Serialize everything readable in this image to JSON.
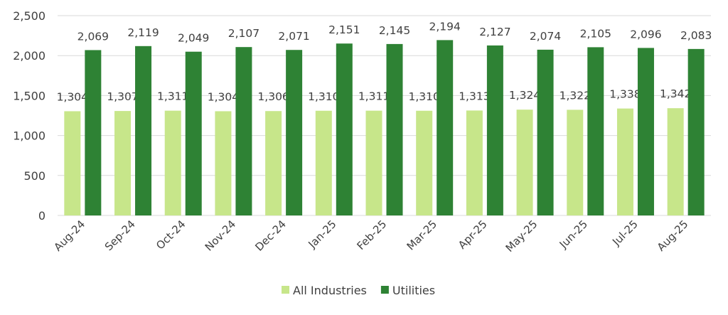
{
  "chart_data": {
    "type": "bar",
    "title": "",
    "xlabel": "",
    "ylabel": "",
    "ylim": [
      0,
      2500
    ],
    "yticks": [
      0,
      500,
      1000,
      1500,
      2000,
      2500
    ],
    "ytick_labels": [
      "0",
      "500",
      "1,000",
      "1,500",
      "2,000",
      "2,500"
    ],
    "grid": true,
    "legend_position": "bottom",
    "categories": [
      "Aug-24",
      "Sep-24",
      "Oct-24",
      "Nov-24",
      "Dec-24",
      "Jan-25",
      "Feb-25",
      "Mar-25",
      "Apr-25",
      "May-25",
      "Jun-25",
      "Jul-25",
      "Aug-25"
    ],
    "series": [
      {
        "name": "All Industries",
        "color": "#c7e68a",
        "values": [
          1304,
          1307,
          1311,
          1304,
          1306,
          1310,
          1311,
          1310,
          1313,
          1324,
          1322,
          1338,
          1342
        ],
        "labels": [
          "1,304",
          "1,307",
          "1,311",
          "1,304",
          "1,306",
          "1,310",
          "1,311",
          "1,310",
          "1,313",
          "1,324",
          "1,322",
          "1,338",
          "1,342"
        ]
      },
      {
        "name": "Utilities",
        "color": "#2e8234",
        "values": [
          2069,
          2119,
          2049,
          2107,
          2071,
          2151,
          2145,
          2194,
          2127,
          2074,
          2105,
          2096,
          2083
        ],
        "labels": [
          "2,069",
          "2,119",
          "2,049",
          "2,107",
          "2,071",
          "2,151",
          "2,145",
          "2,194",
          "2,127",
          "2,074",
          "2,105",
          "2,096",
          "2,083"
        ]
      }
    ]
  }
}
